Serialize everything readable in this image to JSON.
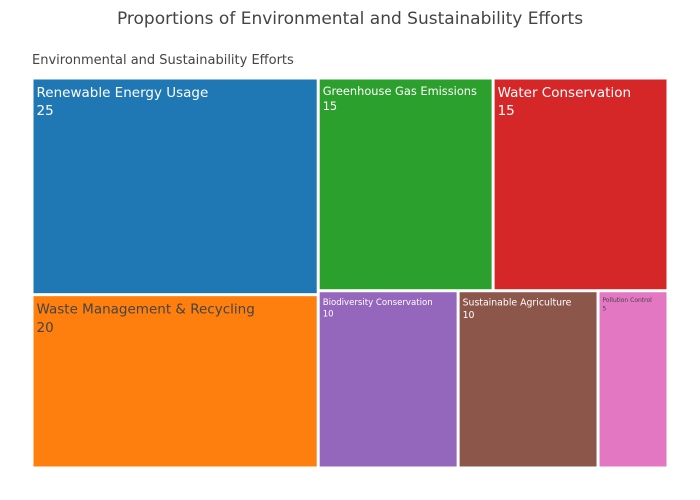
{
  "chart_data": {
    "type": "treemap",
    "title": "Proportions of Environmental and Sustainability Efforts",
    "root": "Environmental and Sustainability Efforts",
    "items": [
      {
        "label": "Renewable Energy Usage",
        "value": 25,
        "color": "#1f77b4",
        "text_color": "#ffffff"
      },
      {
        "label": "Greenhouse Gas Emissions",
        "value": 15,
        "color": "#2ca02c",
        "text_color": "#ffffff"
      },
      {
        "label": "Water Conservation",
        "value": 15,
        "color": "#d62728",
        "text_color": "#ffffff"
      },
      {
        "label": "Waste Management & Recycling",
        "value": 20,
        "color": "#ff7f0e",
        "text_color": "#444444"
      },
      {
        "label": "Biodiversity Conservation",
        "value": 10,
        "color": "#9467bd",
        "text_color": "#ffffff"
      },
      {
        "label": "Sustainable Agriculture",
        "value": 10,
        "color": "#8c564b",
        "text_color": "#ffffff"
      },
      {
        "label": "Pollution Control",
        "value": 5,
        "color": "#e377c2",
        "text_color": "#444444"
      }
    ]
  }
}
